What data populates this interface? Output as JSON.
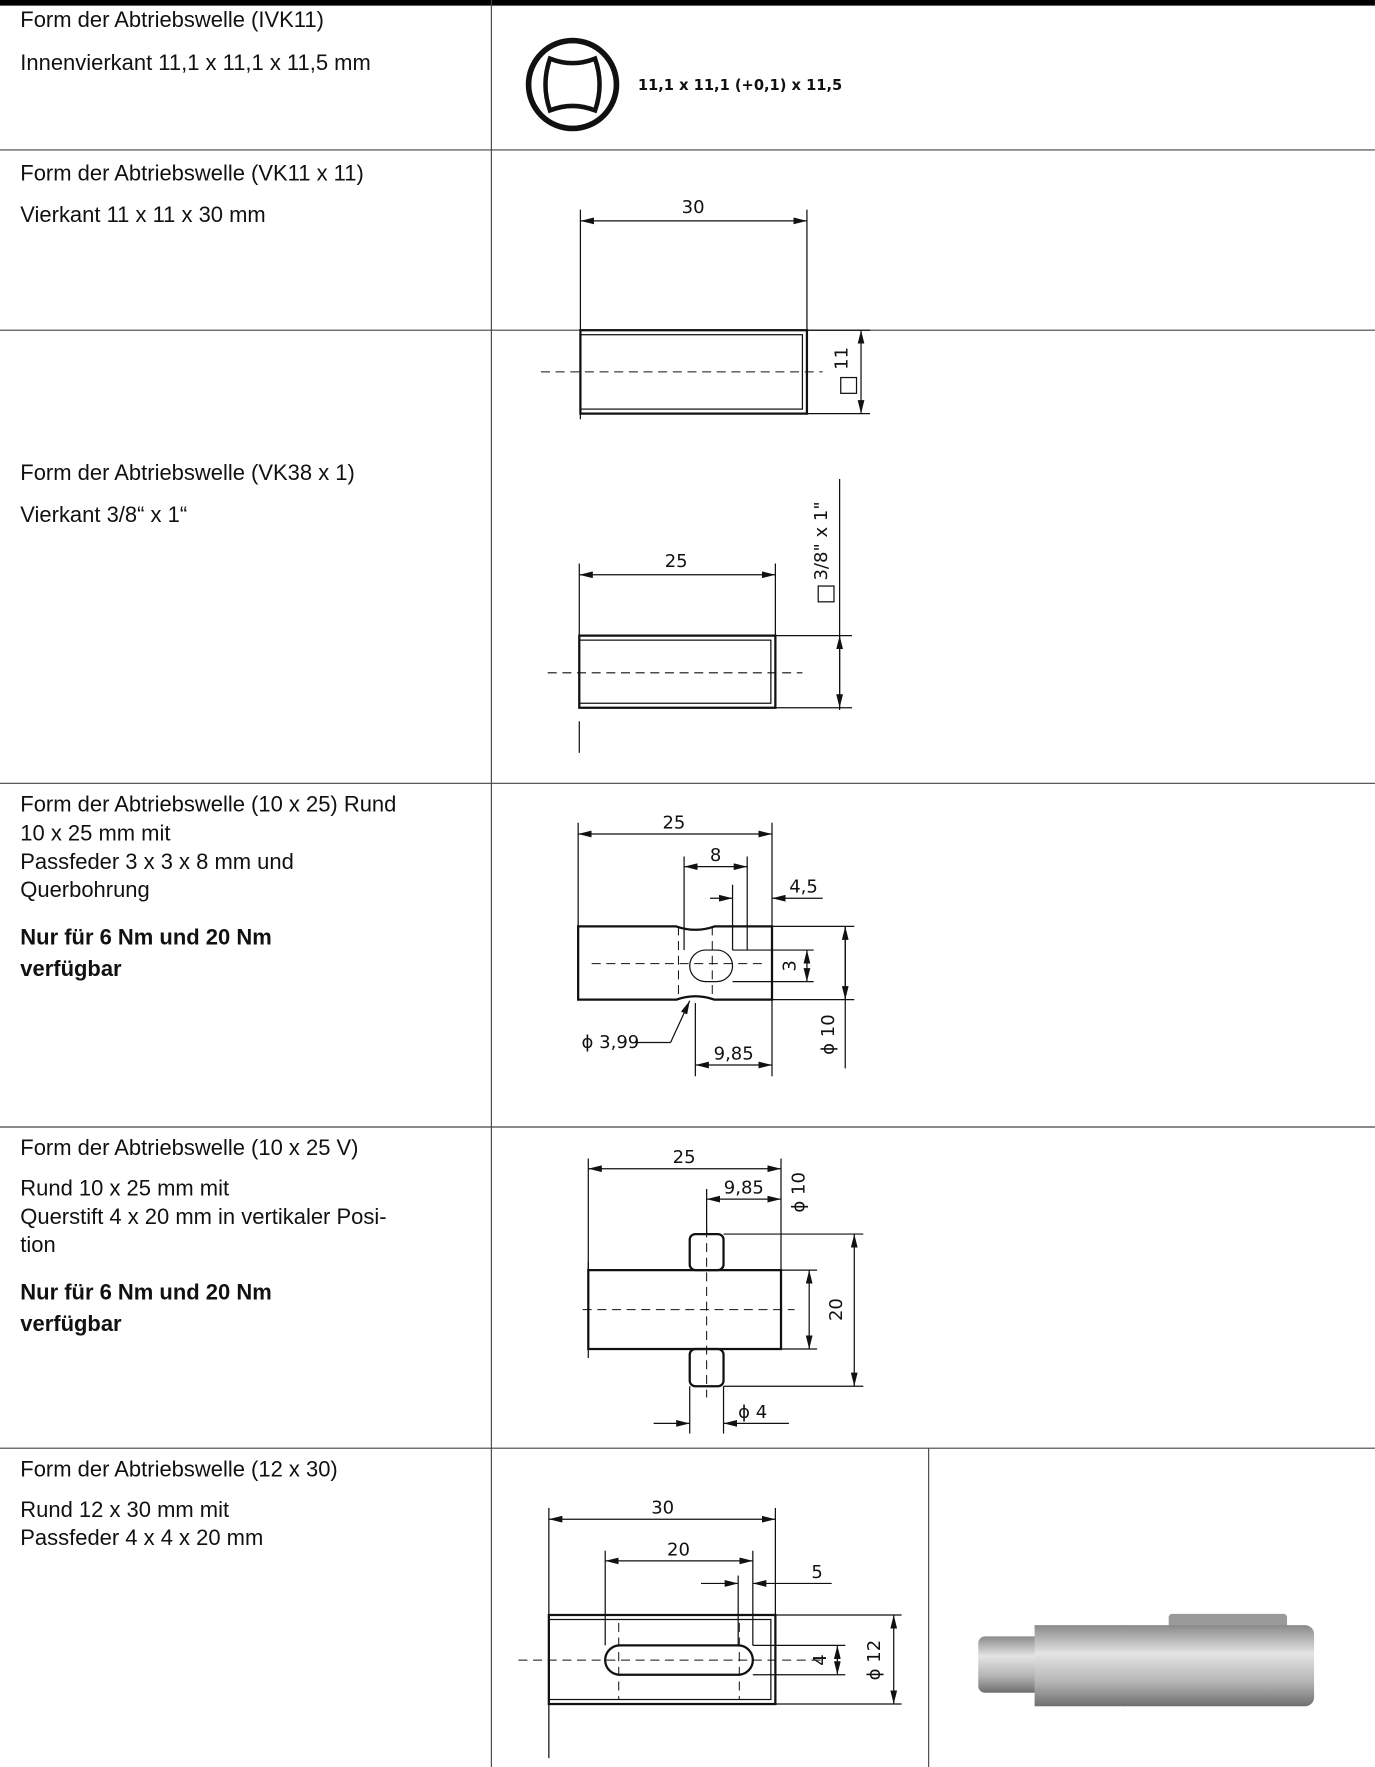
{
  "rows": [
    {
      "title": "Form der Abtriebswelle (IVK11)",
      "lines": [
        "Innenvierkant 11,1 x 11,1 x 11,5 mm"
      ],
      "labels": [
        "11,1 x 11,1 (+0,1) x 11,5"
      ]
    },
    {
      "title": "Form der Abtriebswelle (VK11 x 11)",
      "lines": [
        "Vierkant 11 x 11 x 30 mm"
      ],
      "labels": [
        "30",
        "11"
      ]
    },
    {
      "title": "Form der Abtriebswelle (VK38 x 1)",
      "lines": [
        "Vierkant 3/8“ x 1“"
      ],
      "labels": [
        "25",
        "3/8\" x 1\""
      ]
    },
    {
      "title": "Form der Abtriebswelle (10 x 25) Rund",
      "lines": [
        "10 x 25 mm mit",
        "Passfeder 3 x 3 x 8 mm und",
        "Querbohrung"
      ],
      "note": [
        "Nur für 6 Nm und 20 Nm",
        "verfügbar"
      ],
      "labels": [
        "25",
        "8",
        "4,5",
        "3",
        "ϕ 10",
        "ϕ 3,99",
        "9,85"
      ]
    },
    {
      "title": "Form der Abtriebswelle (10 x 25 V)",
      "lines": [
        "Rund 10 x 25 mm mit",
        "Querstift 4 x 20 mm in vertikaler Posi-",
        "tion"
      ],
      "note": [
        "Nur für 6 Nm und 20 Nm",
        "verfügbar"
      ],
      "labels": [
        "25",
        "9,85",
        "ϕ 10",
        "20",
        "ϕ 4"
      ]
    },
    {
      "title": "Form der Abtriebswelle (12 x 30)",
      "lines": [
        "Rund 12 x 30 mm mit",
        "Passfeder 4 x 4 x 20 mm"
      ],
      "labels": [
        "30",
        "20",
        "5",
        "4",
        "ϕ 12"
      ]
    }
  ]
}
